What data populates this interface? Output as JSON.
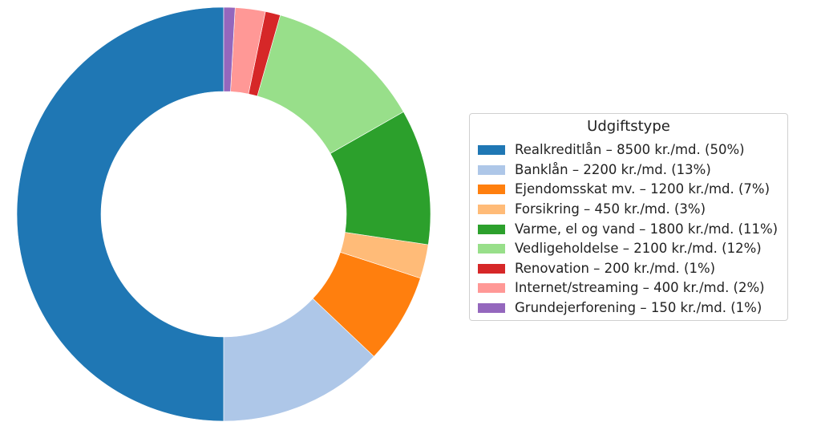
{
  "chart_data": {
    "type": "pie",
    "variant": "donut",
    "legend": {
      "title": "Udgiftstype",
      "placement": "right"
    },
    "slices": [
      {
        "label": "Realkreditlån – 8500 kr./md. (50%)",
        "value": 8500,
        "color": "#1f77b4"
      },
      {
        "label": "Banklån – 2200 kr./md. (13%)",
        "value": 2200,
        "color": "#aec7e8"
      },
      {
        "label": "Ejendomsskat mv. – 1200 kr./md. (7%)",
        "value": 1200,
        "color": "#ff7f0e"
      },
      {
        "label": "Forsikring – 450 kr./md. (3%)",
        "value": 450,
        "color": "#ffbb78"
      },
      {
        "label": "Varme, el og vand – 1800 kr./md. (11%)",
        "value": 1800,
        "color": "#2ca02c"
      },
      {
        "label": "Vedligeholdelse – 2100 kr./md. (12%)",
        "value": 2100,
        "color": "#98df8a"
      },
      {
        "label": "Renovation – 200 kr./md. (1%)",
        "value": 200,
        "color": "#d62728"
      },
      {
        "label": "Internet/streaming – 400 kr./md. (2%)",
        "value": 400,
        "color": "#ff9896"
      },
      {
        "label": "Grundejerforening – 150 kr./md. (1%)",
        "value": 150,
        "color": "#9467bd"
      }
    ],
    "start_angle": "top",
    "direction": "counterclockwise"
  }
}
